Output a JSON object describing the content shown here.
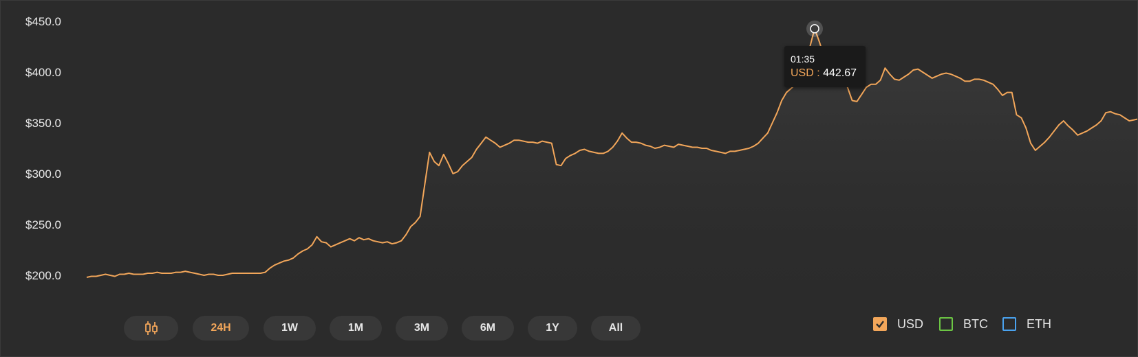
{
  "chart_data": {
    "type": "area",
    "y_ticks": [
      "$200.0",
      "$250.0",
      "$300.0",
      "$350.0",
      "$400.0",
      "$450.0"
    ],
    "ylim": [
      200,
      450
    ],
    "grid": false,
    "series": [
      {
        "name": "USD",
        "color": "#f2a65a",
        "values": [
          198,
          199,
          199,
          200,
          201,
          200,
          199,
          201,
          201,
          202,
          201,
          201,
          201,
          202,
          202,
          203,
          202,
          202,
          202,
          203,
          203,
          204,
          203,
          202,
          201,
          200,
          201,
          201,
          200,
          200,
          201,
          202,
          202,
          202,
          202,
          202,
          202,
          202,
          203,
          207,
          210,
          212,
          214,
          215,
          217,
          221,
          224,
          226,
          230,
          238,
          233,
          232,
          228,
          230,
          232,
          234,
          236,
          234,
          237,
          235,
          236,
          234,
          233,
          232,
          233,
          231,
          232,
          234,
          240,
          248,
          252,
          258,
          290,
          321,
          312,
          308,
          319,
          310,
          300,
          302,
          308,
          312,
          316,
          324,
          330,
          336,
          333,
          330,
          326,
          328,
          330,
          333,
          333,
          332,
          331,
          331,
          330,
          332,
          331,
          330,
          309,
          308,
          315,
          318,
          320,
          323,
          324,
          322,
          321,
          320,
          320,
          322,
          326,
          332,
          340,
          335,
          331,
          331,
          330,
          328,
          327,
          325,
          326,
          328,
          327,
          326,
          329,
          328,
          327,
          326,
          326,
          325,
          325,
          323,
          322,
          321,
          320,
          322,
          322,
          323,
          324,
          325,
          327,
          330,
          335,
          340,
          350,
          360,
          372,
          380,
          384,
          388,
          394,
          404,
          425,
          442.67,
          430,
          415,
          413,
          410,
          402,
          398,
          385,
          372,
          371,
          378,
          385,
          388,
          388,
          392,
          404,
          398,
          393,
          392,
          395,
          398,
          402,
          403,
          400,
          397,
          394,
          396,
          398,
          399,
          398,
          396,
          394,
          391,
          391,
          393,
          393,
          392,
          390,
          388,
          383,
          377,
          380,
          380,
          358,
          355,
          345,
          330,
          323,
          327,
          331,
          336,
          342,
          348,
          352,
          347,
          343,
          338,
          340,
          342,
          345,
          348,
          352,
          360,
          361,
          359,
          358,
          355,
          352,
          353,
          354
        ]
      }
    ],
    "tooltip": {
      "time": "01:35",
      "series": "USD",
      "separator": " : ",
      "value": "442.67"
    },
    "highlight_index": 155
  },
  "range_buttons": [
    {
      "label": "",
      "icon": "candlestick-icon"
    },
    {
      "label": "24H",
      "active": true
    },
    {
      "label": "1W"
    },
    {
      "label": "1M"
    },
    {
      "label": "3M"
    },
    {
      "label": "6M"
    },
    {
      "label": "1Y"
    },
    {
      "label": "All"
    }
  ],
  "legend": [
    {
      "label": "USD",
      "color": "#f2a65a",
      "checked": true
    },
    {
      "label": "BTC",
      "color": "#6cc644",
      "checked": false
    },
    {
      "label": "ETH",
      "color": "#4aa3f0",
      "checked": false
    }
  ],
  "colors": {
    "background": "#2b2b2b",
    "accent": "#f2a65a",
    "button_bg": "#383838",
    "text": "#e6e6e6"
  }
}
